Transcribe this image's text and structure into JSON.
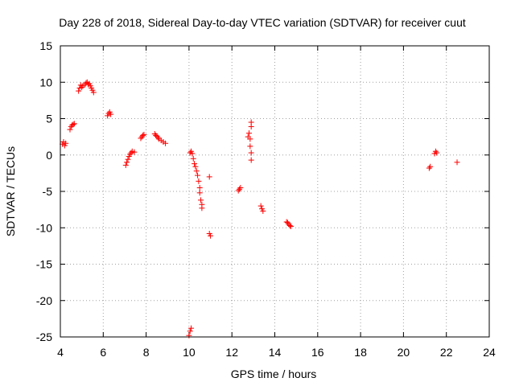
{
  "chart_data": {
    "type": "scatter",
    "title": "Day 228 of 2018, Sidereal Day-to-day VTEC variation (SDTVAR) for receiver cuut",
    "xlabel": "GPS time / hours",
    "ylabel": "SDTVAR / TECUs",
    "xlim": [
      4,
      24
    ],
    "ylim": [
      -25,
      15
    ],
    "xticks": [
      4,
      6,
      8,
      10,
      12,
      14,
      16,
      18,
      20,
      22,
      24
    ],
    "yticks": [
      15,
      10,
      5,
      0,
      -5,
      -10,
      -15,
      -20,
      -25
    ],
    "grid": true,
    "marker": "+",
    "series": [
      {
        "name": "SDTVAR",
        "color": "#ff0000",
        "points": [
          [
            4.1,
            1.5
          ],
          [
            4.15,
            1.8
          ],
          [
            4.2,
            1.3
          ],
          [
            4.25,
            1.6
          ],
          [
            4.45,
            3.5
          ],
          [
            4.5,
            3.9
          ],
          [
            4.55,
            4.1
          ],
          [
            4.6,
            4.2
          ],
          [
            4.65,
            4.3
          ],
          [
            4.85,
            8.8
          ],
          [
            4.9,
            9.2
          ],
          [
            4.95,
            9.6
          ],
          [
            5.0,
            9.3
          ],
          [
            5.05,
            9.5
          ],
          [
            5.15,
            9.7
          ],
          [
            5.2,
            9.9
          ],
          [
            5.25,
            10.0
          ],
          [
            5.3,
            9.7
          ],
          [
            5.35,
            9.8
          ],
          [
            5.4,
            9.5
          ],
          [
            5.45,
            9.2
          ],
          [
            5.5,
            8.9
          ],
          [
            5.55,
            8.6
          ],
          [
            6.2,
            5.4
          ],
          [
            6.25,
            5.7
          ],
          [
            6.3,
            5.9
          ],
          [
            6.35,
            5.6
          ],
          [
            7.05,
            -1.4
          ],
          [
            7.1,
            -1.0
          ],
          [
            7.15,
            -0.6
          ],
          [
            7.2,
            -0.2
          ],
          [
            7.25,
            0.1
          ],
          [
            7.3,
            0.3
          ],
          [
            7.35,
            0.5
          ],
          [
            7.45,
            0.4
          ],
          [
            7.75,
            2.3
          ],
          [
            7.8,
            2.5
          ],
          [
            7.85,
            2.7
          ],
          [
            7.9,
            2.8
          ],
          [
            8.4,
            2.9
          ],
          [
            8.45,
            2.7
          ],
          [
            8.5,
            2.6
          ],
          [
            8.55,
            2.4
          ],
          [
            8.6,
            2.2
          ],
          [
            8.7,
            2.0
          ],
          [
            8.8,
            1.8
          ],
          [
            8.9,
            1.6
          ],
          [
            10.0,
            -24.8
          ],
          [
            10.05,
            -24.2
          ],
          [
            10.1,
            -23.8
          ],
          [
            10.05,
            0.3
          ],
          [
            10.1,
            0.5
          ],
          [
            10.15,
            0.2
          ],
          [
            10.2,
            -0.5
          ],
          [
            10.25,
            -1.2
          ],
          [
            10.3,
            -1.6
          ],
          [
            10.35,
            -2.2
          ],
          [
            10.4,
            -2.8
          ],
          [
            10.45,
            -3.6
          ],
          [
            10.5,
            -4.5
          ],
          [
            10.5,
            -5.2
          ],
          [
            10.55,
            -6.2
          ],
          [
            10.6,
            -6.8
          ],
          [
            10.6,
            -7.3
          ],
          [
            10.95,
            -3.0
          ],
          [
            10.95,
            -10.8
          ],
          [
            11.0,
            -11.1
          ],
          [
            12.3,
            -4.9
          ],
          [
            12.35,
            -4.7
          ],
          [
            12.4,
            -4.5
          ],
          [
            12.75,
            2.5
          ],
          [
            12.8,
            3.0
          ],
          [
            12.85,
            2.2
          ],
          [
            12.85,
            1.2
          ],
          [
            12.9,
            0.3
          ],
          [
            12.9,
            -0.7
          ],
          [
            12.9,
            3.9
          ],
          [
            12.9,
            4.5
          ],
          [
            13.35,
            -7.0
          ],
          [
            13.4,
            -7.4
          ],
          [
            13.45,
            -7.7
          ],
          [
            14.55,
            -9.2
          ],
          [
            14.6,
            -9.3
          ],
          [
            14.65,
            -9.5
          ],
          [
            14.7,
            -9.7
          ],
          [
            14.75,
            -9.8
          ],
          [
            21.2,
            -1.8
          ],
          [
            21.25,
            -1.6
          ],
          [
            21.45,
            0.2
          ],
          [
            21.5,
            0.5
          ],
          [
            21.55,
            0.3
          ],
          [
            22.5,
            -1.0
          ]
        ]
      }
    ]
  }
}
